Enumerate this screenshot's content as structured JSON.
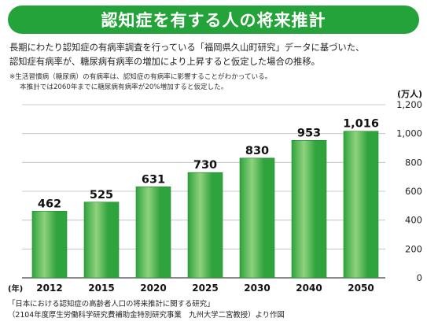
{
  "title": "認知症を有する人の将来推計",
  "description": [
    "長期にわたり認知症の有病率調査を行っている「福岡県久山町研究」データに基づいた、",
    "認知症有病率が、糖尿病有病率の増加により上昇すると仮定した場合の推移。"
  ],
  "notes": [
    "※生活習慣病（糖尿病）の有病率は、認知症の有病率に影響することがわかっている。",
    "本推計では2060年までに糖尿病有病率が20%増加すると仮定した。"
  ],
  "source": [
    "「日本における認知症の高齢者人口の将来推計に関する研究」",
    "（2104年度厚生労働科学研究費補助金特別研究事業　九州大学二宮教授）より作図"
  ],
  "colors": {
    "banner": "#23a33a",
    "bar": "#2fa33c",
    "bar_highlight": "#8fd27e",
    "grid": "#bbbbbb",
    "bg": "#ffffff"
  },
  "chart_data": {
    "type": "bar",
    "categories": [
      "2012",
      "2015",
      "2020",
      "2025",
      "2030",
      "2040",
      "2050"
    ],
    "values": [
      462,
      525,
      631,
      730,
      830,
      953,
      1016
    ],
    "value_labels": [
      "462",
      "525",
      "631",
      "730",
      "830",
      "953",
      "1,016"
    ],
    "x_unit_label": "(年)",
    "y_unit_label": "(万人)",
    "y_axis_position": "right",
    "ylim": [
      0,
      1200
    ],
    "y_ticks": [
      0,
      200,
      400,
      600,
      800,
      1000,
      1200
    ],
    "y_tick_labels": [
      "0",
      "200",
      "400",
      "600",
      "800",
      "1,000",
      "1,200"
    ],
    "grid": true
  }
}
